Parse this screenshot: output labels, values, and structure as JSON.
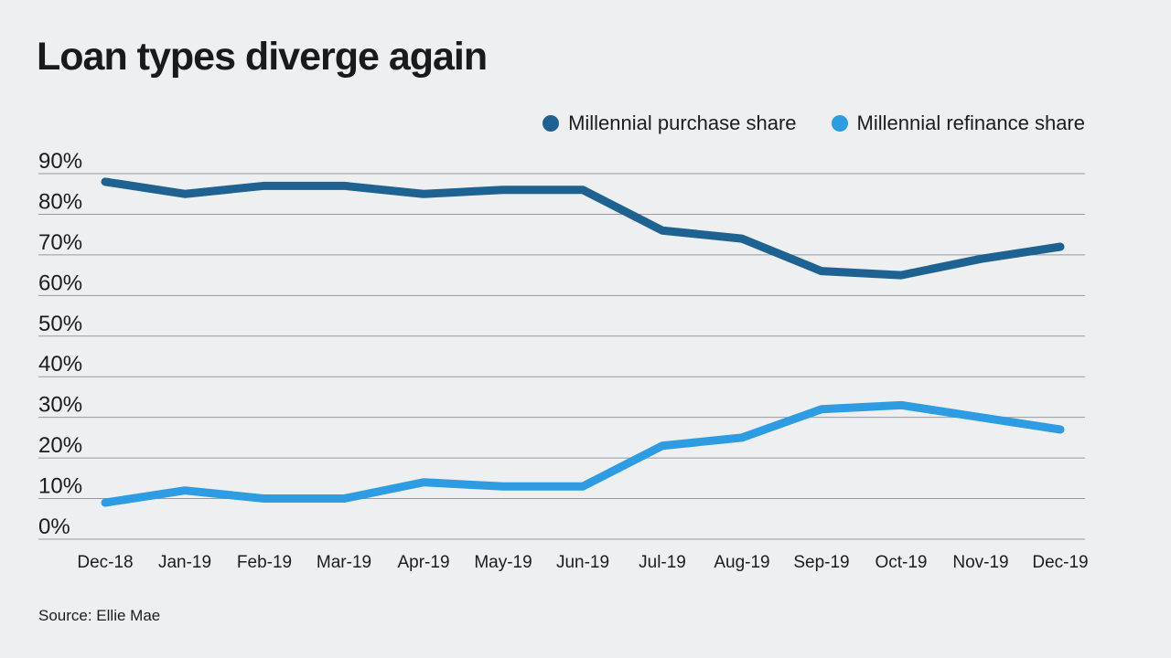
{
  "title": "Loan types diverge again",
  "source": "Source: Ellie Mae",
  "colors": {
    "background": "#edeff1",
    "gridline": "#97999c",
    "text": "#1a1c1e",
    "purchase": "#1d6290",
    "refinance": "#2d9ce2"
  },
  "chart_data": {
    "type": "line",
    "title": "Loan types diverge again",
    "x": [
      "Dec-18",
      "Jan-19",
      "Feb-19",
      "Mar-19",
      "Apr-19",
      "May-19",
      "Jun-19",
      "Jul-19",
      "Aug-19",
      "Sep-19",
      "Oct-19",
      "Nov-19",
      "Dec-19"
    ],
    "series": [
      {
        "name": "Millennial purchase share",
        "color": "#1d6290",
        "values": [
          88,
          85,
          87,
          87,
          85,
          86,
          86,
          76,
          74,
          66,
          65,
          69,
          72
        ]
      },
      {
        "name": "Millennial refinance share",
        "color": "#2d9ce2",
        "values": [
          9,
          12,
          10,
          10,
          14,
          13,
          13,
          23,
          25,
          32,
          33,
          30,
          27
        ]
      }
    ],
    "ylim": [
      0,
      90
    ],
    "ytick_step": 10,
    "yticks": [
      "90%",
      "80%",
      "70%",
      "60%",
      "50%",
      "40%",
      "30%",
      "20%",
      "10%",
      "0%"
    ],
    "grid": true,
    "legend_position": "top-right",
    "xlabel": "",
    "ylabel": "",
    "source": "Source: Ellie Mae"
  }
}
